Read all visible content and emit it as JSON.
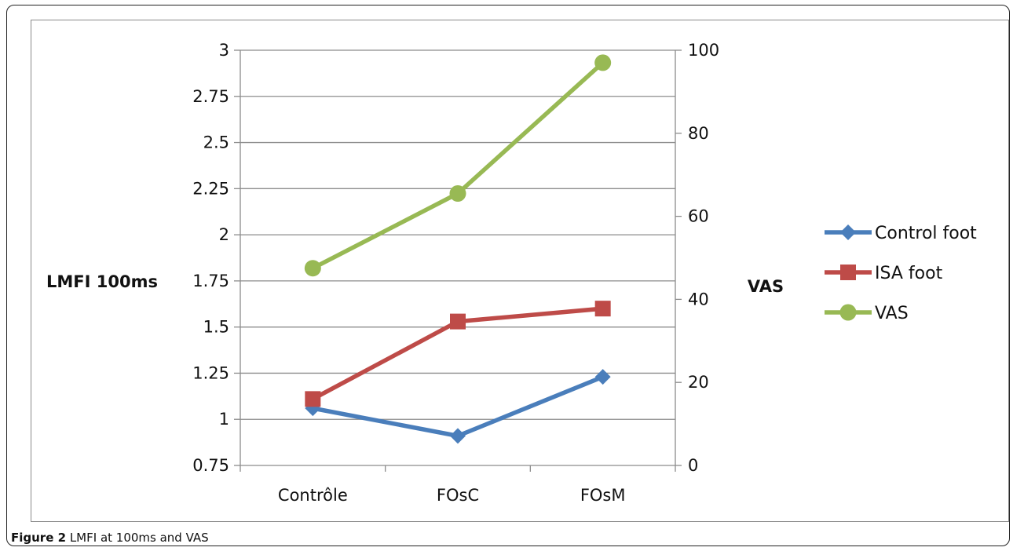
{
  "caption": {
    "label": "Figure 2",
    "text": "LMFI at 100ms and VAS"
  },
  "chart_data": {
    "type": "line",
    "categories": [
      "Contrôle",
      "FOsC",
      "FOsM"
    ],
    "y_left": {
      "label": "LMFI 100ms",
      "range": [
        0.75,
        3
      ],
      "ticks": [
        "0.75",
        "1",
        "1.25",
        "1.5",
        "1.75",
        "2",
        "2.25",
        "2.5",
        "2.75",
        "3"
      ]
    },
    "y_right": {
      "label": "VAS",
      "range": [
        0,
        100
      ],
      "ticks": [
        "0",
        "20",
        "40",
        "60",
        "80",
        "100"
      ]
    },
    "series": [
      {
        "name": "Control foot",
        "axis": "left",
        "marker": "diamond",
        "color": "#4a7ebb",
        "values": [
          1.06,
          0.91,
          1.23
        ]
      },
      {
        "name": "ISA foot",
        "axis": "left",
        "marker": "square",
        "color": "#be4b48",
        "values": [
          1.11,
          1.53,
          1.6
        ]
      },
      {
        "name": "VAS",
        "axis": "right",
        "marker": "circle",
        "color": "#98b954",
        "values": [
          47.5,
          65.5,
          97
        ]
      }
    ],
    "legend_position": "right",
    "grid": "horizontal"
  }
}
